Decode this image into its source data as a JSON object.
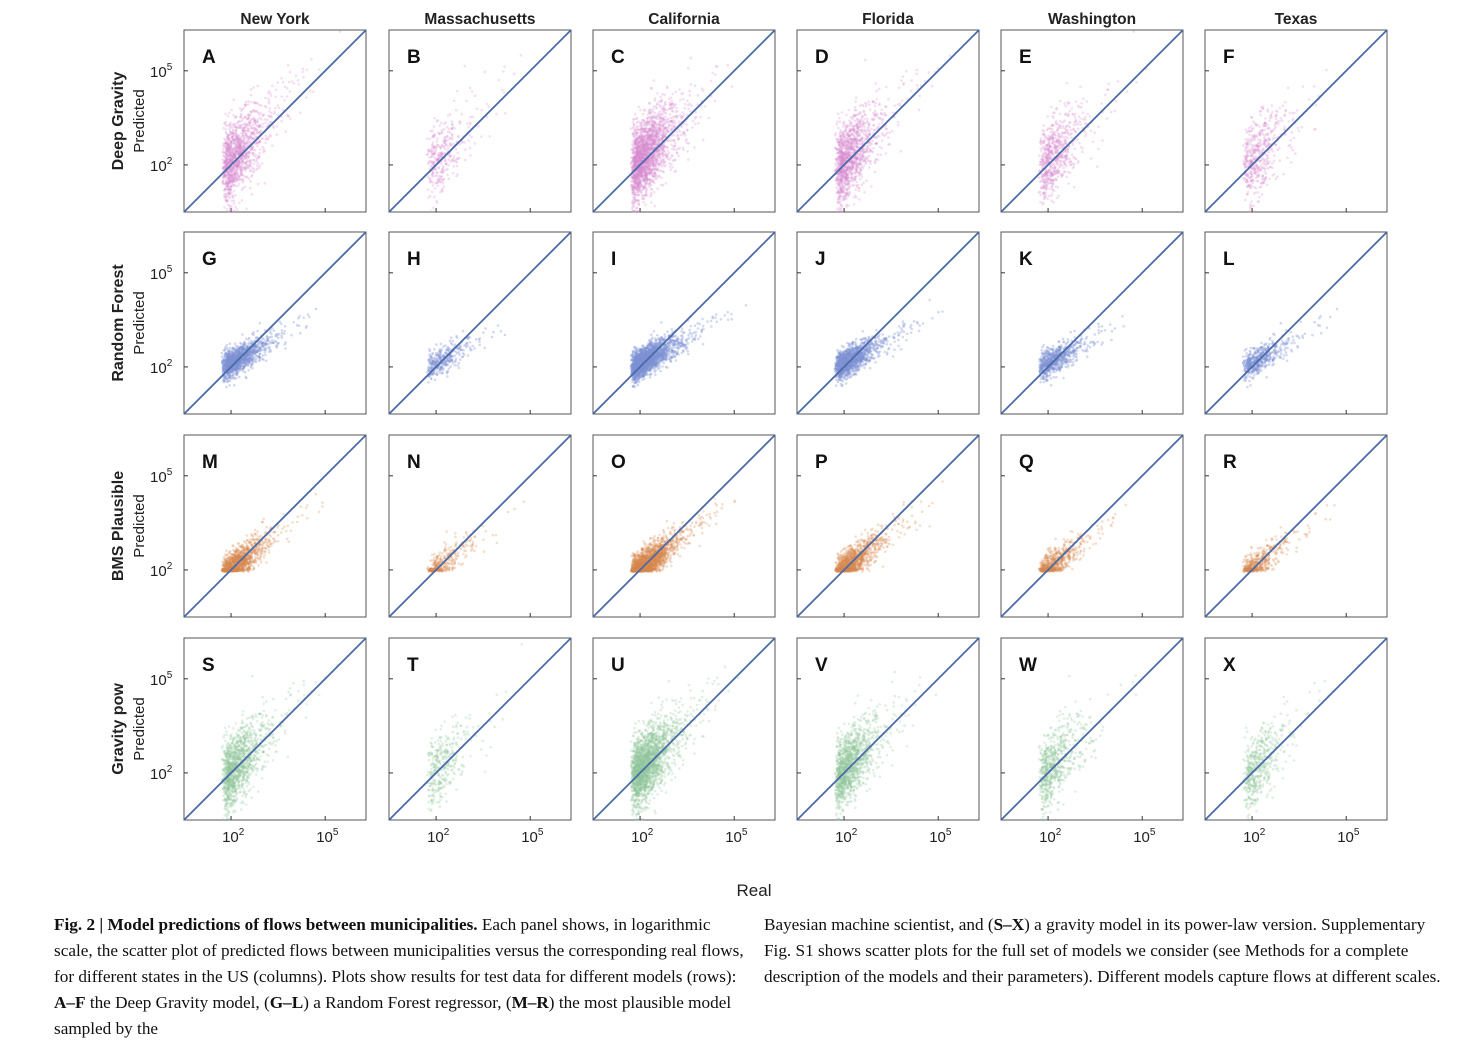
{
  "columns": [
    "New York",
    "Massachusetts",
    "California",
    "Florida",
    "Washington",
    "Texas"
  ],
  "rows": [
    {
      "model": "Deep Gravity",
      "ylabel": "Predicted",
      "color": "#d98ccf",
      "letters": [
        "A",
        "B",
        "C",
        "D",
        "E",
        "F"
      ]
    },
    {
      "model": "Random Forest",
      "ylabel": "Predicted",
      "color": "#7f93d4",
      "letters": [
        "G",
        "H",
        "I",
        "J",
        "K",
        "L"
      ]
    },
    {
      "model": "BMS Plausible",
      "ylabel": "Predicted",
      "color": "#d9894f",
      "letters": [
        "M",
        "N",
        "O",
        "P",
        "Q",
        "R"
      ]
    },
    {
      "model": "Gravity pow",
      "ylabel": "Predicted",
      "color": "#8ec79a",
      "letters": [
        "S",
        "T",
        "U",
        "V",
        "W",
        "X"
      ]
    }
  ],
  "xlabel": "Real",
  "tick_labels": [
    "10",
    "10"
  ],
  "tick_exponents": [
    "2",
    "5"
  ],
  "chart_data": {
    "type": "scatter",
    "scale": "log",
    "xlim_log10": [
      0.5,
      6.3
    ],
    "ylim_log10": [
      0.5,
      6.3
    ],
    "xticks": [
      100,
      100000
    ],
    "yticks": [
      100,
      100000
    ],
    "reference_line": "y = x",
    "line_color": "#4a6aa8",
    "density": [
      [
        3,
        0.8,
        5,
        3,
        1.6,
        1.2
      ],
      [
        3,
        0.8,
        5,
        3,
        1.6,
        1.2
      ],
      [
        3,
        0.8,
        5,
        3,
        1.6,
        1.2
      ],
      [
        3,
        0.8,
        5,
        3,
        1.6,
        1.2
      ]
    ]
  },
  "caption": {
    "fig_label": "Fig. 2 | ",
    "fig_title": "Model predictions of flows between municipalities.",
    "p1a": " Each panel shows, in logarithmic scale, the scatter plot of predicted flows between municipalities versus the corresponding real flows, for different states in the US (columns). Plots show results for test data for different models (rows): ",
    "r1": "A–F",
    "p1b": " the Deep Gravity model, (",
    "r2": "G–L",
    "p1c": ") a Random Forest regressor, (",
    "r3": "M–R",
    "p1d": ") the most plausible model sampled by the",
    "p2a": "Bayesian machine scientist, and (",
    "r4": "S–X",
    "p2b": ") a gravity model in its power-law version. Supplementary Fig. S1 shows scatter plots for the full set of models we consider (see Methods for a complete description of the models and their parameters). Different models capture flows at different scales."
  }
}
